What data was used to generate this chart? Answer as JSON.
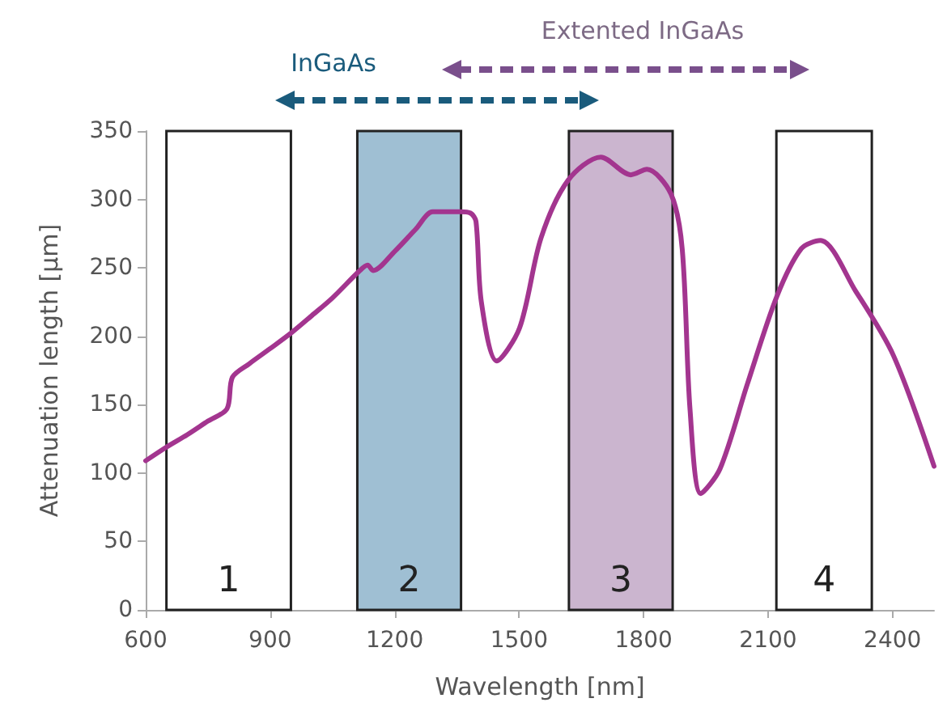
{
  "chart_data": {
    "type": "line",
    "xlabel": "Wavelength [nm]",
    "ylabel": "Attenuation length [µm]",
    "x": [
      600,
      650,
      700,
      750,
      796,
      809,
      850,
      900,
      953,
      1000,
      1050,
      1116,
      1135,
      1148,
      1200,
      1250,
      1292,
      1357,
      1383,
      1396,
      1409,
      1446,
      1501,
      1553,
      1618,
      1697,
      1769,
      1808,
      1866,
      1893,
      1912,
      1938,
      1984,
      2050,
      2121,
      2180,
      2226,
      2311,
      2402,
      2500
    ],
    "series": [
      {
        "color": "#a3358f",
        "values": [
          109,
          119,
          128,
          138,
          147,
          170,
          180,
          191,
          203,
          215,
          228,
          248,
          252,
          248,
          262,
          278,
          291,
          291,
          290,
          284,
          225,
          182,
          206,
          272,
          314,
          331,
          318,
          322,
          304,
          264,
          146,
          85,
          103,
          165,
          229,
          264,
          270,
          233,
          186,
          105
        ]
      }
    ],
    "xlim": [
      600,
      2500
    ],
    "xticks": [
      600,
      900,
      1200,
      1500,
      1800,
      2100,
      2400
    ],
    "ylim": [
      0,
      350
    ],
    "yticks": [
      0,
      50,
      100,
      150,
      200,
      250,
      300,
      350
    ],
    "grid": false,
    "marker": "none",
    "line_style": "solid",
    "bands": [
      {
        "axis": "x",
        "from": 650,
        "to": 950,
        "label": "1",
        "color": "#ffffff"
      },
      {
        "axis": "x",
        "from": 1110,
        "to": 1360,
        "label": "2",
        "color": "#9fbfd3"
      },
      {
        "axis": "x",
        "from": 1620,
        "to": 1870,
        "label": "3",
        "color": "#cbb5cf"
      },
      {
        "axis": "x",
        "from": 2120,
        "to": 2350,
        "label": "4",
        "color": "#ffffff"
      }
    ],
    "annotations": [
      "InGaAs",
      "Extented InGaAs"
    ]
  }
}
